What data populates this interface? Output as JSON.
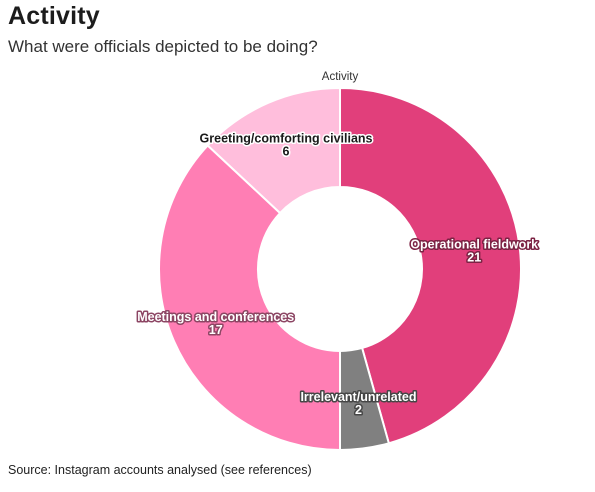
{
  "title": "Activity",
  "subtitle": "What were officials depicted to be doing?",
  "source": "Source: Instagram accounts analysed (see references)",
  "chart_data": {
    "type": "pie",
    "donut": true,
    "legend_title": "Activity",
    "labels_position": "on-slice",
    "slices": [
      {
        "label": "Operational fieldwork",
        "value": 21,
        "color": "#e13f7b"
      },
      {
        "label": "Irrelevant/unrelated",
        "value": 2,
        "color": "#808080"
      },
      {
        "label": "Meetings and conferences",
        "value": 17,
        "color": "#ff7eb4"
      },
      {
        "label": "Greeting/comforting civilians",
        "value": 6,
        "color": "#ffbedc"
      }
    ]
  }
}
